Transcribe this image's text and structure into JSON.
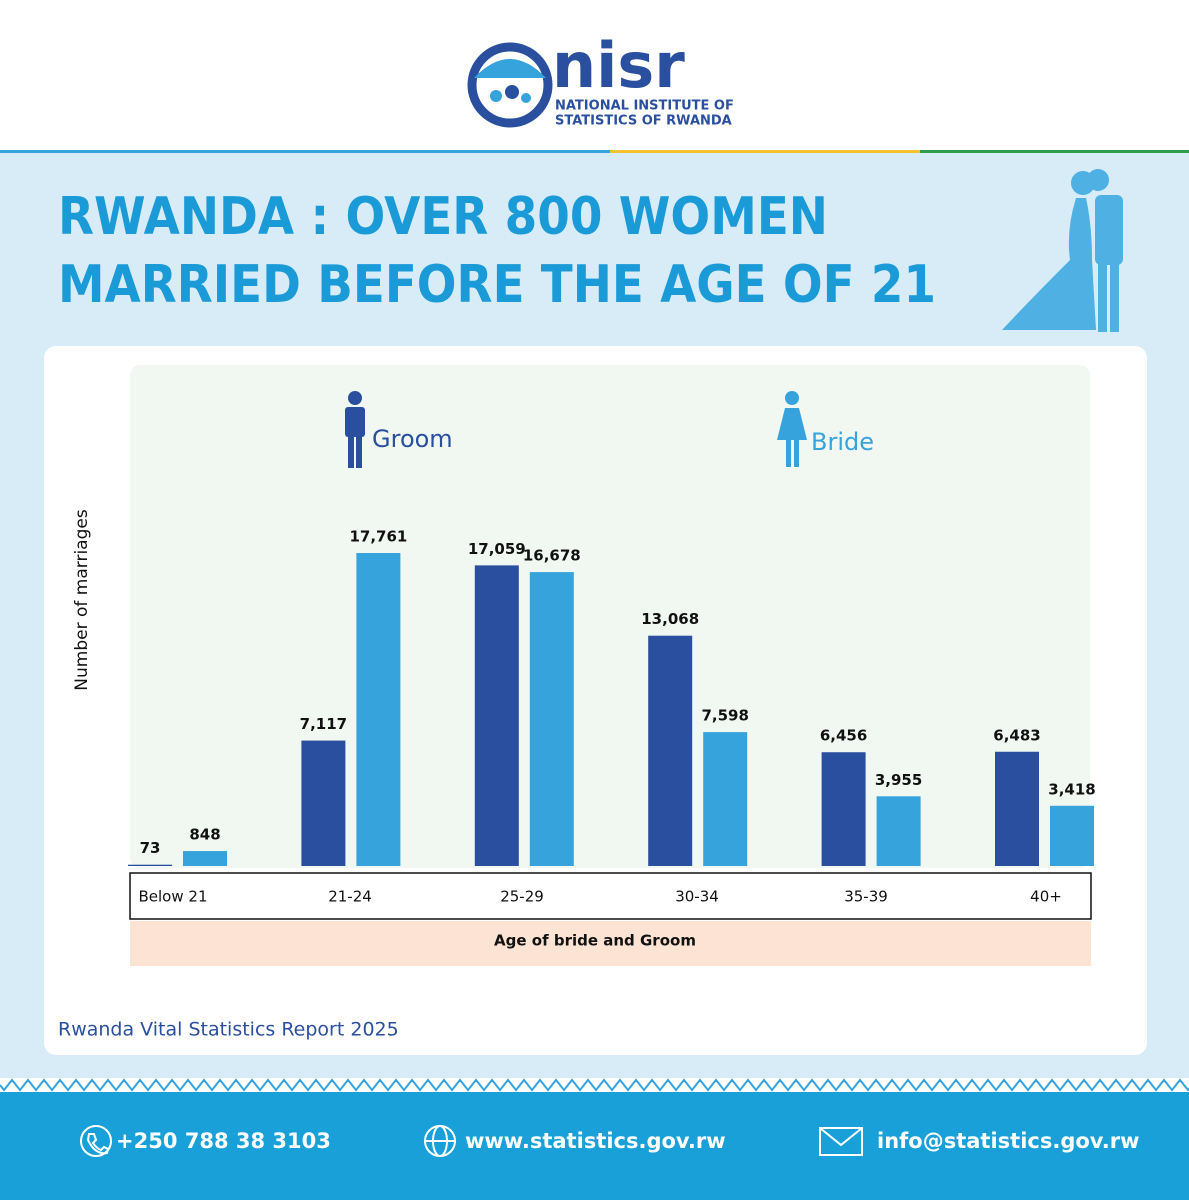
{
  "header": {
    "logo_text": "nisr",
    "logo_subtitle": [
      "NATIONAL INSTITUTE OF",
      "STATISTICS OF RWANDA"
    ]
  },
  "chart_data": {
    "type": "bar",
    "title": [
      "RWANDA : OVER 800 WOMEN",
      "MARRIED BEFORE THE AGE OF 21"
    ],
    "x_label": "Age of bride and Groom",
    "y_label": "Number of marriages",
    "categories": [
      "Below 21",
      "21-24",
      "25-29",
      "30-34",
      "35-39",
      "40+"
    ],
    "series": [
      {
        "name": "Groom",
        "color": "#2a4f9e",
        "values": [
          73,
          7117,
          17059,
          13068,
          6456,
          6483
        ],
        "value_labels": [
          "73",
          "7,117",
          "17,059",
          "13,068",
          "6,456",
          "6,483"
        ]
      },
      {
        "name": "Bride",
        "color": "#36a3dc",
        "values": [
          848,
          17761,
          16678,
          7598,
          3955,
          3418
        ],
        "value_labels": [
          "848",
          "17,761",
          "16,678",
          "7,598",
          "3,955",
          "3,418"
        ]
      }
    ],
    "source": "Rwanda Vital Statistics Report 2025"
  },
  "footer": {
    "phone": "+250 788 38 3103",
    "website": "www.statistics.gov.rw",
    "email": "info@statistics.gov.rw"
  }
}
